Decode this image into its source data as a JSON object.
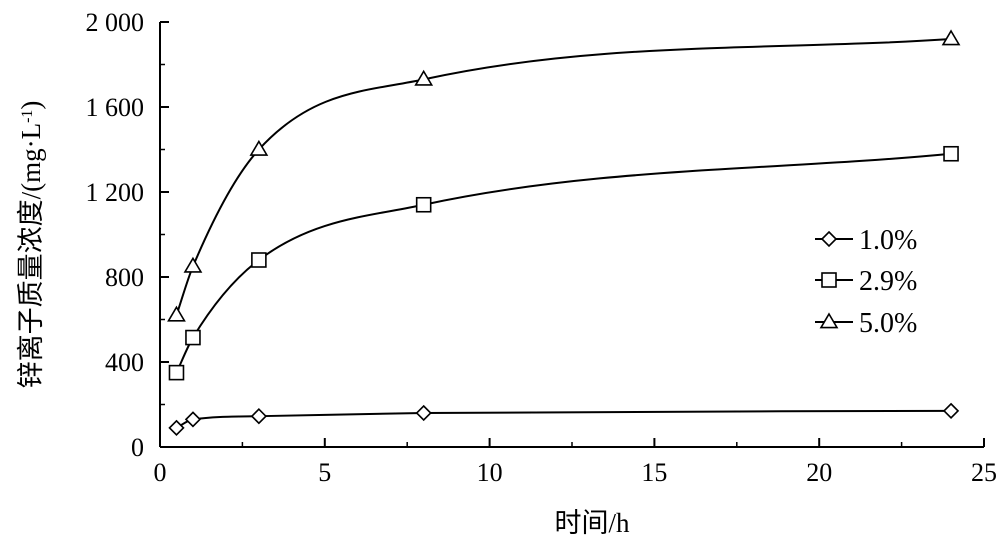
{
  "chart_data": {
    "type": "line",
    "title": "",
    "xlabel": "时间/h",
    "ylabel": "锌离子质量浓度/(mg·L",
    "ylabel_sup": "-1",
    "ylabel_close": ")",
    "xlim": [
      0,
      25
    ],
    "ylim": [
      0,
      2000
    ],
    "x_ticks": [
      0,
      5,
      10,
      15,
      20,
      25
    ],
    "x_tick_labels": [
      "0",
      "5",
      "10",
      "15",
      "20",
      "25"
    ],
    "y_ticks": [
      0,
      400,
      800,
      1200,
      1600,
      2000
    ],
    "y_tick_labels": [
      "0",
      "400",
      "800",
      "1 200",
      "1 600",
      "2 000"
    ],
    "grid": false,
    "legend_position": "right",
    "series": [
      {
        "name": "1.0%",
        "marker": "diamond",
        "x": [
          0.5,
          1,
          3,
          8,
          24
        ],
        "y": [
          90,
          130,
          145,
          160,
          170
        ]
      },
      {
        "name": "2.9%",
        "marker": "square",
        "x": [
          0.5,
          1,
          3,
          8,
          24
        ],
        "y": [
          350,
          515,
          880,
          1140,
          1380
        ]
      },
      {
        "name": "5.0%",
        "marker": "triangle",
        "x": [
          0.5,
          1,
          3,
          8,
          24
        ],
        "y": [
          620,
          850,
          1400,
          1730,
          1920
        ]
      }
    ]
  }
}
